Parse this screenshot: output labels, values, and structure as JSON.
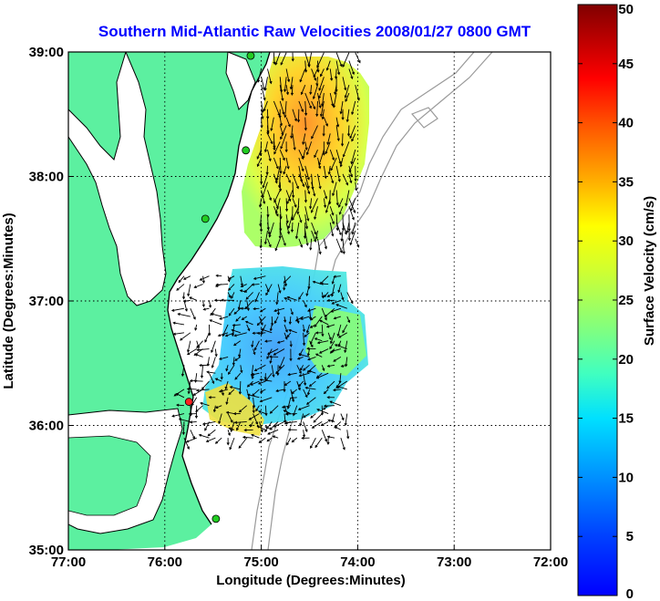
{
  "title": "Southern Mid-Atlantic Raw Velocities 2008/01/27 0800 GMT",
  "colors": {
    "title": "#0000ff",
    "land": "#5cf0a0",
    "coast": "#000000",
    "bathymetry": "#9a9a9a",
    "grid": "#000000",
    "vector": "#000000",
    "station_active": "#22cc22",
    "station_inactive": "#ff2222"
  },
  "chart_data": {
    "type": "heatmap",
    "title": "Southern Mid-Atlantic Raw Velocities 2008/01/27 0800 GMT",
    "xlabel": "Longitude (Degrees:Minutes)",
    "ylabel": "Latitude (Degrees:Minutes)",
    "xlim": [
      -77,
      -72
    ],
    "ylim": [
      35,
      39
    ],
    "xticks": [
      "77:00",
      "76:00",
      "75:00",
      "74:00",
      "73:00",
      "72:00"
    ],
    "yticks": [
      "35:00",
      "36:00",
      "37:00",
      "38:00",
      "39:00"
    ],
    "grid": true,
    "colorbar": {
      "label": "Surface Velocity (cm/s)",
      "range": [
        0,
        50
      ],
      "ticks": [
        "0",
        "5",
        "10",
        "15",
        "20",
        "25",
        "30",
        "35",
        "40",
        "45",
        "50"
      ],
      "colormap": "jet"
    },
    "stations": [
      {
        "lon": -75.11,
        "lat": 38.97,
        "status": "active"
      },
      {
        "lon": -75.16,
        "lat": 38.21,
        "status": "active"
      },
      {
        "lon": -75.58,
        "lat": 37.66,
        "status": "active"
      },
      {
        "lon": -75.75,
        "lat": 36.19,
        "status": "inactive"
      },
      {
        "lon": -75.47,
        "lat": 35.25,
        "status": "active"
      }
    ],
    "regions": [
      {
        "name": "north",
        "lon": [
          -75.0,
          -74.0
        ],
        "lat": [
          37.5,
          39.0
        ]
      },
      {
        "name": "south",
        "lon": [
          -75.8,
          -74.1
        ],
        "lat": [
          35.9,
          37.25
        ]
      }
    ]
  }
}
